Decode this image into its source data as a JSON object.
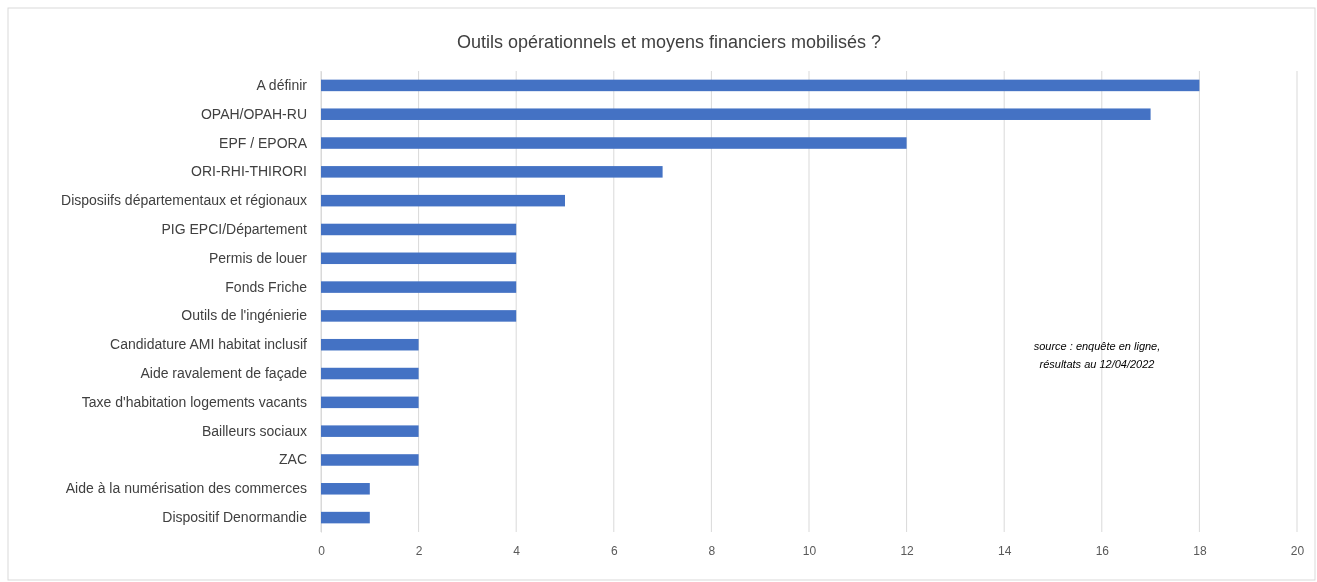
{
  "chart_data": {
    "type": "bar",
    "orientation": "horizontal",
    "title": "Outils opérationnels et moyens financiers mobilisés ?",
    "categories": [
      "A définir",
      "OPAH/OPAH-RU",
      "EPF / EPORA",
      "ORI-RHI-THIRORI",
      "Disposiifs départementaux et régionaux",
      "PIG EPCI/Département",
      "Permis de louer",
      "Fonds Friche",
      "Outils de l'ingénierie",
      "Candidature AMI habitat inclusif",
      "Aide ravalement de façade",
      "Taxe d'habitation logements vacants",
      "Bailleurs sociaux",
      "ZAC",
      "Aide à la numérisation des commerces",
      "Dispositif Denormandie"
    ],
    "values": [
      18,
      17,
      12,
      7,
      5,
      4,
      4,
      4,
      4,
      2,
      2,
      2,
      2,
      2,
      1,
      1
    ],
    "color": "#4472c4",
    "xlim": [
      0,
      20
    ],
    "xticks": [
      0,
      2,
      4,
      6,
      8,
      10,
      12,
      14,
      16,
      18,
      20
    ],
    "grid": "x",
    "annotations": [
      "source : enquête en ligne,\nrésultats au 12/04/2022"
    ]
  }
}
